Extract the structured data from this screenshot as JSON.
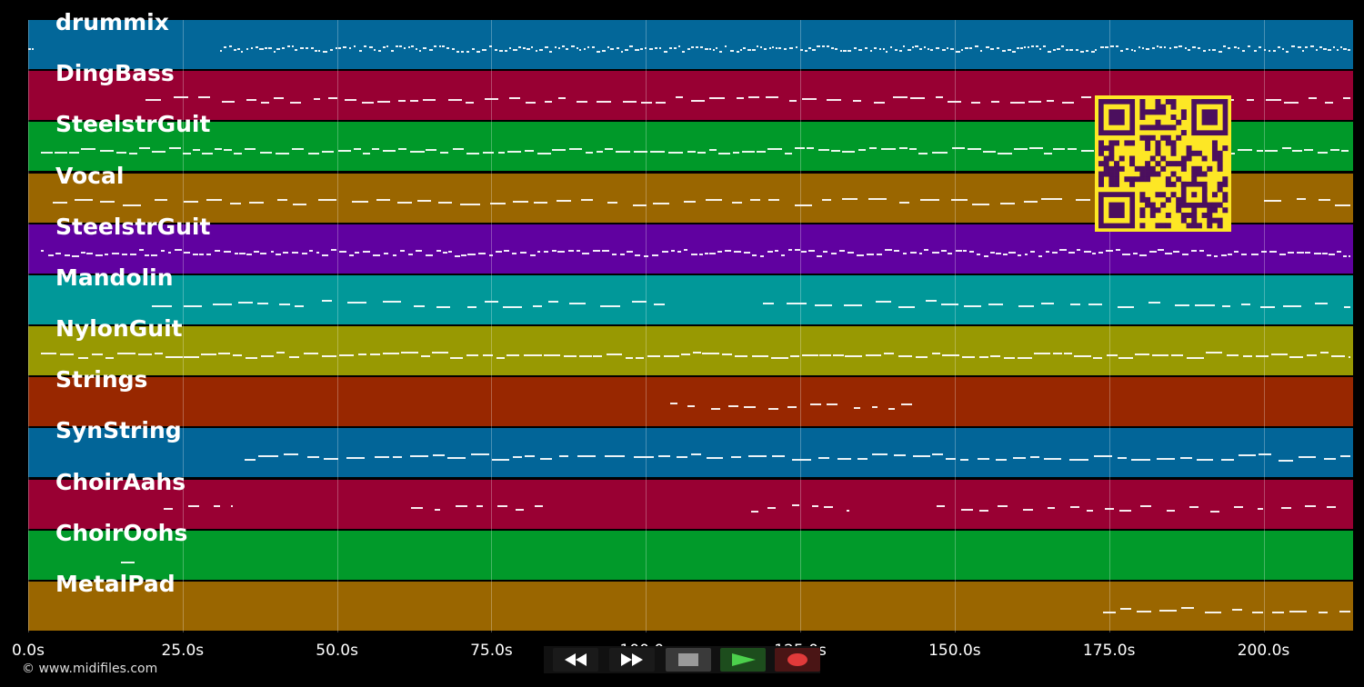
{
  "tracks": [
    {
      "name": "drummix",
      "color": "#036799"
    },
    {
      "name": "DingBass",
      "color": "#980033"
    },
    {
      "name": "SteelstrGuit",
      "color": "#009929"
    },
    {
      "name": "Vocal",
      "color": "#9a6600"
    },
    {
      "name": "SteelstrGuit",
      "color": "#6001a0"
    },
    {
      "name": "Mandolin",
      "color": "#019899"
    },
    {
      "name": "NylonGuit",
      "color": "#989902"
    },
    {
      "name": "Strings",
      "color": "#982700"
    },
    {
      "name": "SynString",
      "color": "#026598"
    },
    {
      "name": "ChoirAahs",
      "color": "#990033"
    },
    {
      "name": "ChoirOohs",
      "color": "#019a2a"
    },
    {
      "name": "MetalPad",
      "color": "#9a6600"
    }
  ],
  "timeline": {
    "ticks": [
      "0.0s",
      "25.0s",
      "50.0s",
      "75.0s",
      "100.0s",
      "125.0s",
      "150.0s",
      "175.0s",
      "200.0s"
    ],
    "tick_values": [
      0,
      25,
      50,
      75,
      100,
      125,
      150,
      175,
      200
    ],
    "duration": 214.5
  },
  "controls": {
    "rewind": "rewind-icon",
    "fast_forward": "fast-forward-icon",
    "stop": "stop-icon",
    "play": "play-icon",
    "record": "record-icon"
  },
  "footer": {
    "copyright": "© www.midifiles.com"
  },
  "colors": {
    "background": "#000000",
    "qr_fg": "#4b0f5e",
    "qr_bg": "#fde725"
  }
}
